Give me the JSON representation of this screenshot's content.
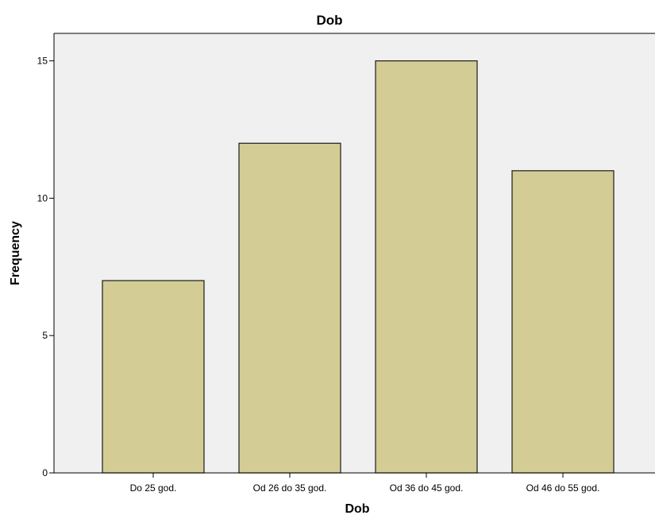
{
  "chart_data": {
    "type": "bar",
    "title": "Dob",
    "xlabel": "Dob",
    "ylabel": "Frequency",
    "categories": [
      "Do 25 god.",
      "Od 26 do 35 god.",
      "Od 36 do 45 god.",
      "Od 46 do 55 god."
    ],
    "values": [
      7,
      12,
      15,
      11
    ],
    "ylim": [
      0,
      16
    ],
    "yticks": [
      0,
      5,
      10,
      15
    ],
    "grid": false,
    "legend": "none",
    "colors": {
      "bar_fill": "#d3cd95",
      "bar_stroke": "#1a1a1a",
      "plot_background": "#f0f0f0",
      "axis": "#000000"
    }
  }
}
